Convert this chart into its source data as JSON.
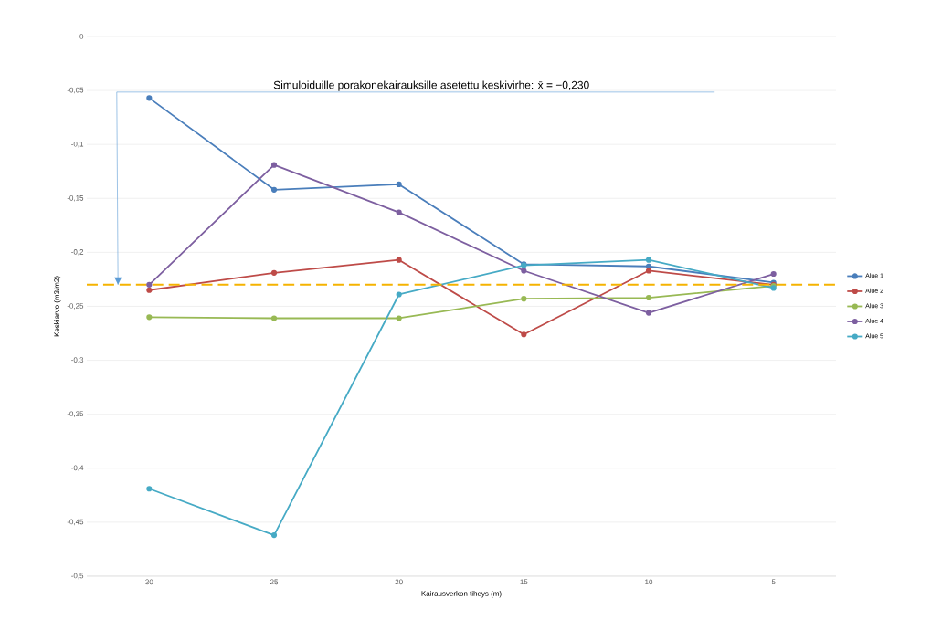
{
  "chart_data": {
    "type": "line",
    "xlabel": "Kairausverkon tiheys (m)",
    "ylabel": "Keskiarvo (m3/m2)",
    "categories": [
      "30",
      "25",
      "20",
      "15",
      "10",
      "5"
    ],
    "series": [
      {
        "name": "Alue 1",
        "color": "#4a7ebb",
        "values": [
          -0.057,
          -0.142,
          -0.137,
          -0.211,
          -0.213,
          -0.228
        ]
      },
      {
        "name": "Alue 2",
        "color": "#be4b48",
        "values": [
          -0.235,
          -0.219,
          -0.207,
          -0.276,
          -0.217,
          -0.23
        ]
      },
      {
        "name": "Alue 3",
        "color": "#98b954",
        "values": [
          -0.26,
          -0.261,
          -0.261,
          -0.243,
          -0.242,
          -0.231
        ]
      },
      {
        "name": "Alue 4",
        "color": "#7d5fa0",
        "values": [
          -0.23,
          -0.119,
          -0.163,
          -0.217,
          -0.256,
          -0.22
        ]
      },
      {
        "name": "Alue 5",
        "color": "#46aac5",
        "values": [
          -0.419,
          -0.462,
          -0.239,
          -0.212,
          -0.207,
          -0.233
        ]
      }
    ],
    "ylim": [
      -0.5,
      0
    ],
    "yticks": [
      {
        "value": -0.5,
        "label": "-0,5"
      },
      {
        "value": -0.45,
        "label": "-0,45"
      },
      {
        "value": -0.4,
        "label": "-0,4"
      },
      {
        "value": -0.35,
        "label": "-0,35"
      },
      {
        "value": -0.3,
        "label": "-0,3"
      },
      {
        "value": -0.25,
        "label": "-0,25"
      },
      {
        "value": -0.2,
        "label": "-0,2"
      },
      {
        "value": -0.15,
        "label": "-0,15"
      },
      {
        "value": -0.1,
        "label": "-0,1"
      },
      {
        "value": -0.05,
        "label": "-0,05"
      },
      0
    ],
    "ref_lines": [
      {
        "axis": "y",
        "value": -0.23,
        "color": "#f5b301",
        "line_style": "dashed"
      }
    ],
    "annotations": [
      "Simuloiduille porakonekairauksille asetettu keskivirhe: x̄ = −0,230"
    ],
    "grid": "y",
    "legend": "right",
    "marker": "circle",
    "line_style": "solid"
  }
}
